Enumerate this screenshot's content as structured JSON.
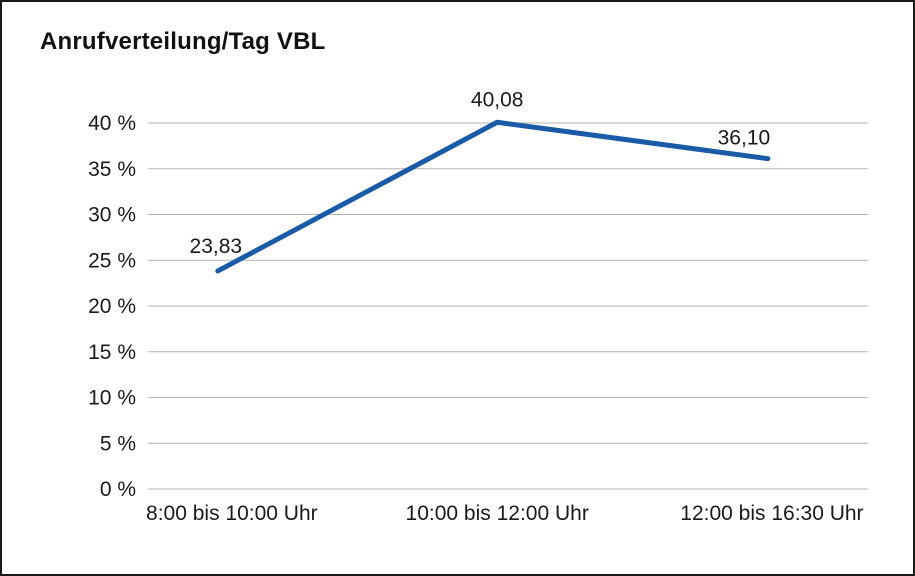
{
  "chart_data": {
    "type": "line",
    "title": "Anrufverteilung/Tag VBL",
    "categories": [
      "8:00 bis 10:00 Uhr",
      "10:00 bis 12:00 Uhr",
      "12:00 bis 16:30 Uhr"
    ],
    "series": [
      {
        "name": "Anrufverteilung/Tag VBL",
        "values": [
          23.83,
          40.08,
          36.1
        ]
      }
    ],
    "value_labels": [
      "23,83",
      "40,08",
      "36,10"
    ],
    "ylabel": "",
    "xlabel": "",
    "ylim": [
      0,
      40
    ],
    "ytick_step": 5,
    "ytick_suffix": " %",
    "grid": "horizontal",
    "legend": "none",
    "colors": {
      "line": "#1a5ba8",
      "grid": "#b3b3b3",
      "text": "#1a1a1a",
      "frame_border": "#1a1a1a",
      "background": "#ffffff"
    }
  }
}
